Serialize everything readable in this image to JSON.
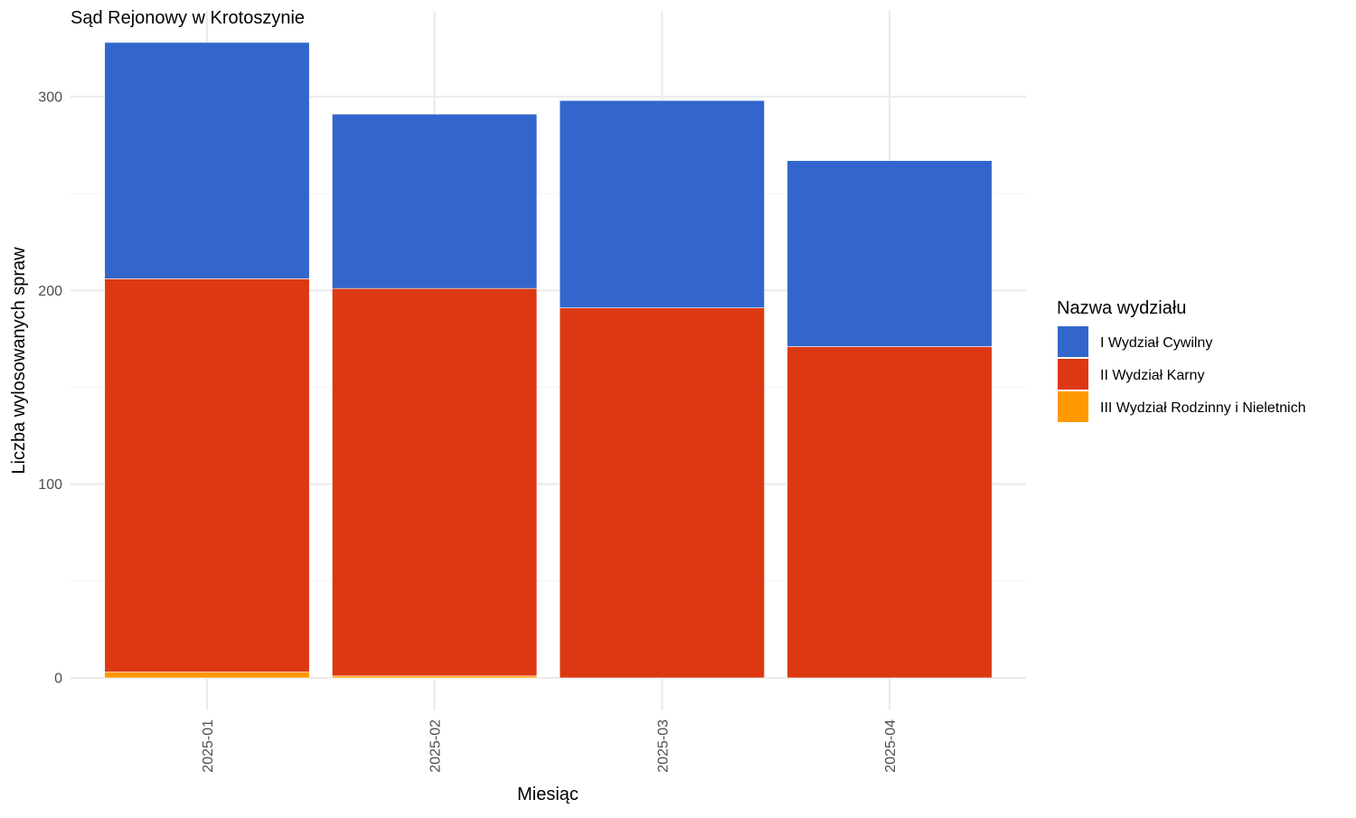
{
  "chart_data": {
    "type": "bar",
    "stacked": true,
    "title": "Sąd Rejonowy w Krotoszynie",
    "xlabel": "Miesiąc",
    "ylabel": "Liczba wylosowanych spraw",
    "categories": [
      "2025-01",
      "2025-02",
      "2025-03",
      "2025-04"
    ],
    "ylim": [
      0,
      336
    ],
    "yticks": [
      0,
      100,
      200,
      300
    ],
    "grid": true,
    "legend": {
      "title": "Nazwa wydziału",
      "position": "right"
    },
    "series": [
      {
        "name": "III Wydział Rodzinny i Nieletnich",
        "color": "#FF9900",
        "values": [
          3,
          1,
          0,
          0
        ]
      },
      {
        "name": "II Wydział Karny",
        "color": "#DC3912",
        "values": [
          203,
          200,
          191,
          171
        ]
      },
      {
        "name": "I Wydział Cywilny",
        "color": "#3366CC",
        "values": [
          122,
          90,
          107,
          96
        ]
      }
    ],
    "legend_order": [
      2,
      1,
      0
    ]
  }
}
